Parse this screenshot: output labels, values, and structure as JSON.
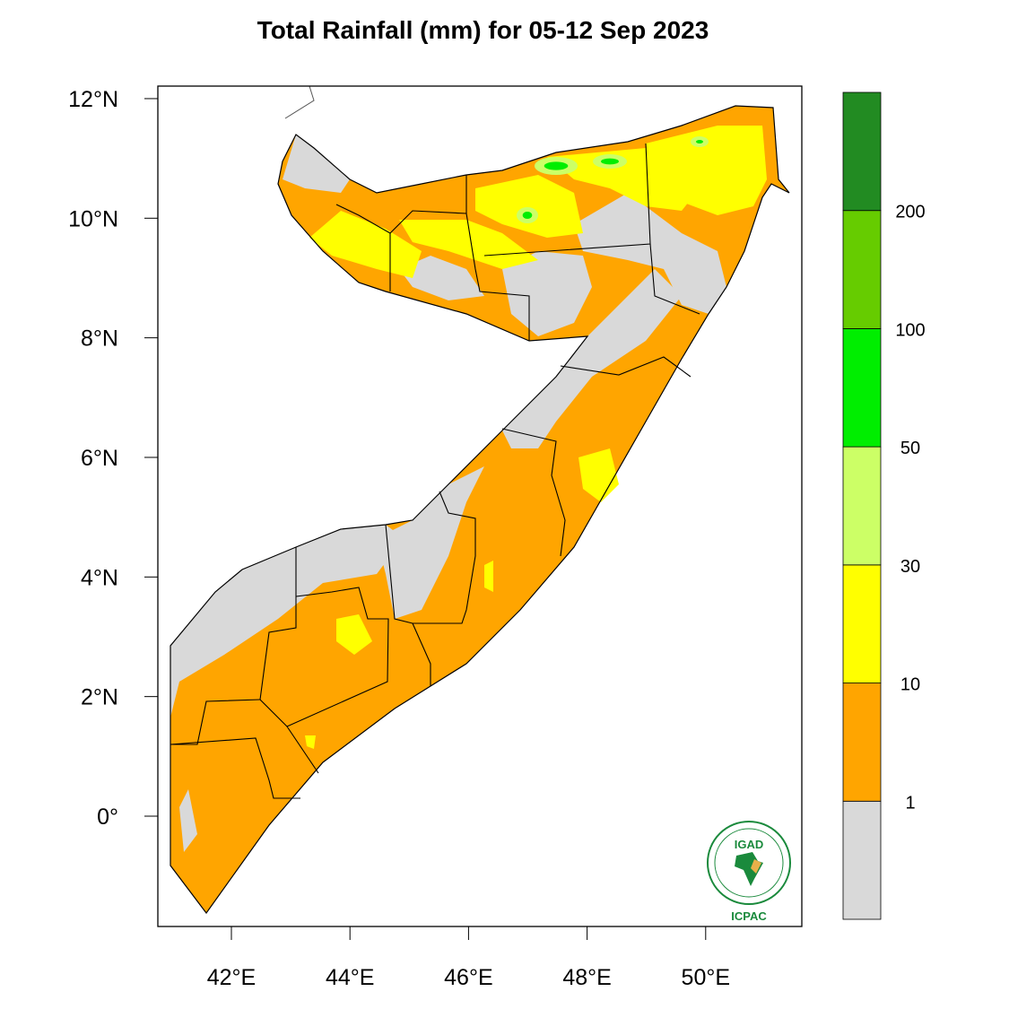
{
  "title": "Total Rainfall (mm) for 05-12 Sep 2023",
  "map": {
    "region": "Somalia",
    "lon_ticks": [
      "42°E",
      "44°E",
      "46°E",
      "48°E",
      "50°E"
    ],
    "lat_ticks": [
      "12°N",
      "10°N",
      "8°N",
      "6°N",
      "4°N",
      "2°N",
      "0°"
    ],
    "lon_range": [
      40.75,
      51.6
    ],
    "lat_range": [
      -1.85,
      12.2
    ]
  },
  "colorbar": {
    "labels": [
      "1",
      "10",
      "30",
      "50",
      "100",
      "200"
    ],
    "colors": [
      "#d9d9d9",
      "#ffa500",
      "#ffff00",
      "#ccff66",
      "#00ee00",
      "#66cc00",
      "#228b22"
    ]
  },
  "logo": {
    "top_text": "IGAD",
    "bottom_text": "ICPAC",
    "color": "#1a8a3c"
  }
}
